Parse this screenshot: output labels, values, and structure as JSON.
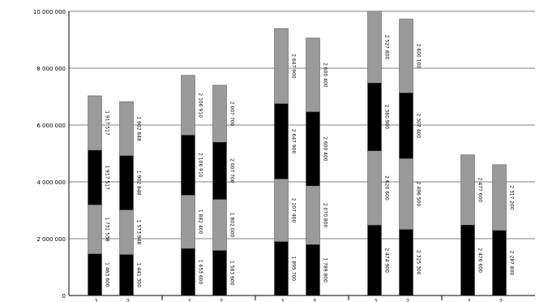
{
  "chart_data": {
    "type": "bar",
    "stacked": true,
    "ylim": [
      0,
      10000000
    ],
    "yticks": [
      0,
      2000000,
      4000000,
      6000000,
      8000000,
      10000000
    ],
    "ytick_labels": [
      "0",
      "2 000 000",
      "4 000 000",
      "6 000 000",
      "8 000 000",
      "10 000 000"
    ],
    "grid": true,
    "legend": "none",
    "colors": {
      "black": "#000000",
      "gray": "#9a9a9a",
      "grid": "#808080",
      "axis": "#000000"
    },
    "segment_colors": [
      "black",
      "gray",
      "black",
      "gray"
    ],
    "groups": [
      {
        "bars": [
          {
            "segments": [
              1463600,
              1731538,
              1917517,
              1917517
            ],
            "x_label": "1"
          },
          {
            "segments": [
              1441300,
              1573948,
              1902848,
              1902848
            ],
            "x_label": "2"
          }
        ]
      },
      {
        "bars": [
          {
            "segments": [
              1653600,
              1882400,
              2106910,
              2106910
            ],
            "x_label": "1"
          },
          {
            "segments": [
              1583600,
              1802000,
              2007700,
              2007700
            ],
            "x_label": "2"
          }
        ]
      },
      {
        "bars": [
          {
            "segments": [
              1895700,
              2207400,
              2647900,
              2647900
            ],
            "x_label": "1"
          },
          {
            "segments": [
              1789800,
              2070800,
              2600400,
              2600400
            ],
            "x_label": "2"
          }
        ]
      },
      {
        "bars": [
          {
            "segments": [
              2474900,
              2620600,
              2380900,
              2527800
            ],
            "x_label": "1"
          },
          {
            "segments": [
              2325300,
              2496500,
              2307400,
              2600100
            ],
            "x_label": "2"
          }
        ]
      },
      {
        "bars": [
          {
            "segments": [
              2476600,
              2477600
            ],
            "x_label": "1"
          },
          {
            "segments": [
              2287800,
              2317200
            ],
            "x_label": "2"
          }
        ]
      }
    ]
  }
}
